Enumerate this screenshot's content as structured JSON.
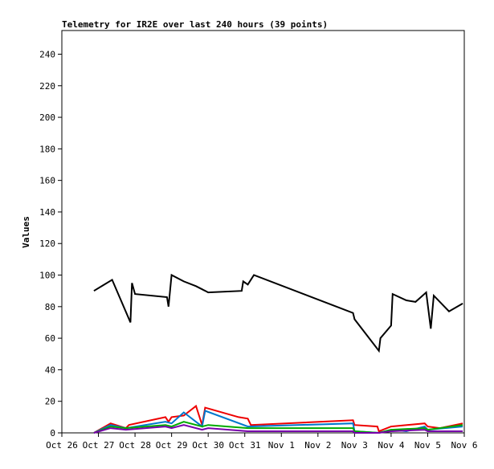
{
  "chart_data": {
    "type": "line",
    "title": "Telemetry for IR2E over last 240 hours (39 points)",
    "ylabel": "Values",
    "xlabel": "",
    "ylim": [
      0,
      255
    ],
    "xlim": [
      "2023-10-26T00:00",
      "2023-11-06T00:00"
    ],
    "yticks": [
      0,
      20,
      40,
      60,
      80,
      100,
      120,
      140,
      160,
      180,
      200,
      220,
      240
    ],
    "xticks": [
      {
        "t": "2023-10-26T00:00",
        "label": "Oct 26"
      },
      {
        "t": "2023-10-27T00:00",
        "label": "Oct 27"
      },
      {
        "t": "2023-10-28T00:00",
        "label": "Oct 28"
      },
      {
        "t": "2023-10-29T00:00",
        "label": "Oct 29"
      },
      {
        "t": "2023-10-30T00:00",
        "label": "Oct 30"
      },
      {
        "t": "2023-10-31T00:00",
        "label": "Oct 31"
      },
      {
        "t": "2023-11-01T00:00",
        "label": "Nov 1"
      },
      {
        "t": "2023-11-02T00:00",
        "label": "Nov 2"
      },
      {
        "t": "2023-11-03T00:00",
        "label": "Nov 3"
      },
      {
        "t": "2023-11-04T00:00",
        "label": "Nov 4"
      },
      {
        "t": "2023-11-05T00:00",
        "label": "Nov 5"
      },
      {
        "t": "2023-11-06T00:00",
        "label": "Nov 6"
      }
    ],
    "grid": false,
    "legend": "none",
    "series": [
      {
        "color": "#000000",
        "points": [
          [
            "2023-10-26T21:00",
            90
          ],
          [
            "2023-10-27T09:00",
            97
          ],
          [
            "2023-10-27T21:00",
            70
          ],
          [
            "2023-10-27T22:00",
            95
          ],
          [
            "2023-10-28T00:00",
            88
          ],
          [
            "2023-10-28T21:00",
            86
          ],
          [
            "2023-10-28T22:00",
            80
          ],
          [
            "2023-10-29T00:00",
            100
          ],
          [
            "2023-10-29T08:00",
            96
          ],
          [
            "2023-10-29T16:00",
            93
          ],
          [
            "2023-10-29T20:00",
            91
          ],
          [
            "2023-10-30T00:00",
            89
          ],
          [
            "2023-10-30T22:00",
            90
          ],
          [
            "2023-10-30T23:00",
            96
          ],
          [
            "2023-10-31T02:00",
            94
          ],
          [
            "2023-10-31T06:00",
            100
          ],
          [
            "2023-11-02T23:00",
            76
          ],
          [
            "2023-11-03T00:00",
            72
          ],
          [
            "2023-11-03T16:00",
            52
          ],
          [
            "2023-11-03T17:00",
            60
          ],
          [
            "2023-11-04T00:00",
            68
          ],
          [
            "2023-11-04T01:00",
            88
          ],
          [
            "2023-11-04T10:00",
            84
          ],
          [
            "2023-11-04T16:00",
            83
          ],
          [
            "2023-11-04T23:00",
            89
          ],
          [
            "2023-11-05T02:00",
            66
          ],
          [
            "2023-11-05T04:00",
            87
          ],
          [
            "2023-11-05T14:00",
            77
          ],
          [
            "2023-11-05T23:00",
            82
          ]
        ]
      },
      {
        "color": "#ee0000",
        "points": [
          [
            "2023-10-26T21:00",
            0
          ],
          [
            "2023-10-27T08:00",
            6
          ],
          [
            "2023-10-27T18:00",
            3
          ],
          [
            "2023-10-27T20:00",
            5
          ],
          [
            "2023-10-28T20:00",
            10
          ],
          [
            "2023-10-28T22:00",
            7
          ],
          [
            "2023-10-29T00:00",
            10
          ],
          [
            "2023-10-29T08:00",
            11
          ],
          [
            "2023-10-29T16:00",
            17
          ],
          [
            "2023-10-29T20:00",
            5
          ],
          [
            "2023-10-29T22:00",
            16
          ],
          [
            "2023-10-30T20:00",
            10
          ],
          [
            "2023-10-31T02:00",
            9
          ],
          [
            "2023-10-31T04:00",
            5
          ],
          [
            "2023-11-02T23:00",
            8
          ],
          [
            "2023-11-03T00:00",
            5
          ],
          [
            "2023-11-03T15:00",
            4
          ],
          [
            "2023-11-03T16:00",
            1
          ],
          [
            "2023-11-04T00:00",
            4
          ],
          [
            "2023-11-04T22:00",
            6
          ],
          [
            "2023-11-05T00:00",
            4
          ],
          [
            "2023-11-05T08:00",
            3
          ],
          [
            "2023-11-05T23:00",
            6
          ]
        ]
      },
      {
        "color": "#0077cc",
        "points": [
          [
            "2023-10-26T21:00",
            0
          ],
          [
            "2023-10-27T08:00",
            5
          ],
          [
            "2023-10-27T18:00",
            3
          ],
          [
            "2023-10-28T20:00",
            7
          ],
          [
            "2023-10-29T00:00",
            6
          ],
          [
            "2023-10-29T08:00",
            13
          ],
          [
            "2023-10-29T20:00",
            4
          ],
          [
            "2023-10-29T22:00",
            14
          ],
          [
            "2023-10-31T02:00",
            4
          ],
          [
            "2023-11-02T23:00",
            6
          ],
          [
            "2023-11-03T00:00",
            1
          ],
          [
            "2023-11-03T16:00",
            0
          ],
          [
            "2023-11-04T00:00",
            2
          ],
          [
            "2023-11-04T10:00",
            1
          ],
          [
            "2023-11-04T22:00",
            4
          ],
          [
            "2023-11-05T00:00",
            2
          ],
          [
            "2023-11-05T23:00",
            4
          ]
        ]
      },
      {
        "color": "#00aa00",
        "points": [
          [
            "2023-10-26T21:00",
            0
          ],
          [
            "2023-10-27T08:00",
            4
          ],
          [
            "2023-10-27T18:00",
            3
          ],
          [
            "2023-10-28T20:00",
            5
          ],
          [
            "2023-10-29T00:00",
            4
          ],
          [
            "2023-10-29T08:00",
            7
          ],
          [
            "2023-10-29T20:00",
            4
          ],
          [
            "2023-10-30T00:00",
            5
          ],
          [
            "2023-10-31T02:00",
            3
          ],
          [
            "2023-11-02T23:00",
            3
          ],
          [
            "2023-11-03T00:00",
            1
          ],
          [
            "2023-11-03T16:00",
            0
          ],
          [
            "2023-11-04T00:00",
            2
          ],
          [
            "2023-11-04T22:00",
            3
          ],
          [
            "2023-11-05T00:00",
            2
          ],
          [
            "2023-11-05T23:00",
            5
          ]
        ]
      },
      {
        "color": "#7700aa",
        "points": [
          [
            "2023-10-26T21:00",
            0
          ],
          [
            "2023-10-27T08:00",
            3
          ],
          [
            "2023-10-27T18:00",
            2
          ],
          [
            "2023-10-28T20:00",
            4
          ],
          [
            "2023-10-29T00:00",
            3
          ],
          [
            "2023-10-29T08:00",
            5
          ],
          [
            "2023-10-29T20:00",
            2
          ],
          [
            "2023-10-30T00:00",
            3
          ],
          [
            "2023-10-31T02:00",
            1
          ],
          [
            "2023-11-02T23:00",
            1
          ],
          [
            "2023-11-03T00:00",
            0
          ],
          [
            "2023-11-03T16:00",
            0
          ],
          [
            "2023-11-04T00:00",
            1
          ],
          [
            "2023-11-04T22:00",
            2
          ],
          [
            "2023-11-05T00:00",
            1
          ],
          [
            "2023-11-05T23:00",
            1
          ]
        ]
      }
    ]
  }
}
